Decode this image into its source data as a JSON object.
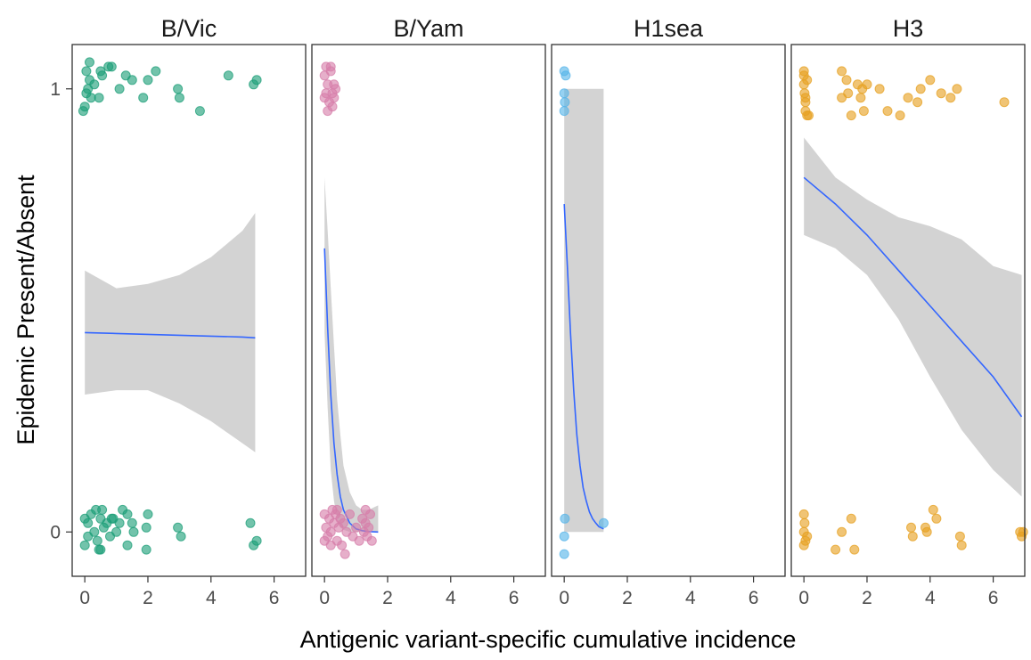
{
  "chart_data": {
    "type": "scatter",
    "xlabel": "Antigenic variant-specific cumulative incidence",
    "ylabel": "Epidemic Present/Absent",
    "xlim": [
      -0.4,
      7.0
    ],
    "ylim": [
      -0.1,
      1.1
    ],
    "x_ticks": [
      0,
      2,
      4,
      6
    ],
    "y_ticks": [
      0,
      1
    ],
    "grid": false,
    "facets": [
      {
        "title": "B/Vic",
        "color": "#1b9e77",
        "fit": {
          "x": [
            0,
            1,
            2,
            3,
            4,
            5,
            5.4
          ],
          "y": [
            0.45,
            0.448,
            0.446,
            0.444,
            0.442,
            0.44,
            0.438
          ],
          "lower": [
            0.31,
            0.32,
            0.32,
            0.29,
            0.25,
            0.2,
            0.18
          ],
          "upper": [
            0.59,
            0.55,
            0.56,
            0.58,
            0.62,
            0.68,
            0.72
          ]
        },
        "points": [
          [
            -0.05,
            0.95
          ],
          [
            0.05,
            0.99
          ],
          [
            0.1,
            1.0
          ],
          [
            0.15,
            1.02
          ],
          [
            0.05,
            1.04
          ],
          [
            0.2,
            0.98
          ],
          [
            0.3,
            1.01
          ],
          [
            0.5,
            1.04
          ],
          [
            0.45,
            0.98
          ],
          [
            0.55,
            1.03
          ],
          [
            0.75,
            1.05
          ],
          [
            0.85,
            1.05
          ],
          [
            1.1,
            1.0
          ],
          [
            1.3,
            1.03
          ],
          [
            1.5,
            1.02
          ],
          [
            1.85,
            0.98
          ],
          [
            2.0,
            1.02
          ],
          [
            2.25,
            1.04
          ],
          [
            2.95,
            1.0
          ],
          [
            3.0,
            0.98
          ],
          [
            3.65,
            0.95
          ],
          [
            4.55,
            1.03
          ],
          [
            5.35,
            1.01
          ],
          [
            5.45,
            1.02
          ],
          [
            0.0,
            0.96
          ],
          [
            0.15,
            1.06
          ],
          [
            0.0,
            0.03
          ],
          [
            0.1,
            0.02
          ],
          [
            0.2,
            0.04
          ],
          [
            0.3,
            0.0
          ],
          [
            0.4,
            -0.02
          ],
          [
            0.5,
            0.03
          ],
          [
            0.55,
            0.05
          ],
          [
            0.6,
            0.01
          ],
          [
            0.7,
            0.02
          ],
          [
            0.8,
            -0.01
          ],
          [
            0.9,
            0.03
          ],
          [
            1.0,
            0.0
          ],
          [
            1.1,
            0.02
          ],
          [
            1.2,
            0.05
          ],
          [
            1.35,
            0.04
          ],
          [
            1.5,
            0.02
          ],
          [
            1.55,
            0.0
          ],
          [
            1.95,
            0.01
          ],
          [
            2.0,
            0.04
          ],
          [
            2.95,
            0.01
          ],
          [
            3.05,
            -0.01
          ],
          [
            5.25,
            0.02
          ],
          [
            5.45,
            -0.02
          ],
          [
            5.35,
            -0.03
          ],
          [
            0.5,
            -0.04
          ],
          [
            1.35,
            -0.03
          ],
          [
            1.95,
            -0.04
          ],
          [
            0.0,
            -0.03
          ],
          [
            0.1,
            -0.01
          ],
          [
            0.35,
            0.05
          ],
          [
            0.45,
            -0.04
          ],
          [
            0.85,
            0.03
          ]
        ]
      },
      {
        "title": "B/Yam",
        "color": "#d67ea9",
        "fit": {
          "x": [
            0,
            0.1,
            0.2,
            0.3,
            0.4,
            0.5,
            0.6,
            0.8,
            1.0,
            1.2,
            1.4,
            1.7
          ],
          "y": [
            0.64,
            0.46,
            0.31,
            0.2,
            0.13,
            0.08,
            0.05,
            0.02,
            0.007,
            0.003,
            0.001,
            0.0
          ],
          "lower": [
            0.45,
            0.28,
            0.14,
            0.07,
            0.03,
            0.01,
            0.005,
            0.0,
            0.0,
            0.0,
            0.0,
            0.0
          ],
          "upper": [
            0.8,
            0.68,
            0.55,
            0.42,
            0.3,
            0.22,
            0.15,
            0.09,
            0.06,
            0.05,
            0.05,
            0.06
          ]
        },
        "points": [
          [
            0.0,
            1.03
          ],
          [
            0.05,
            0.99
          ],
          [
            0.1,
            1.01
          ],
          [
            0.15,
            0.97
          ],
          [
            0.2,
            1.04
          ],
          [
            0.25,
            0.99
          ],
          [
            0.3,
            0.98
          ],
          [
            0.35,
            1.0
          ],
          [
            0.1,
            0.95
          ],
          [
            0.0,
            0.98
          ],
          [
            0.2,
            1.05
          ],
          [
            0.3,
            1.01
          ],
          [
            0.25,
            0.96
          ],
          [
            0.05,
            1.05
          ],
          [
            0.0,
            0.04
          ],
          [
            0.05,
            0.01
          ],
          [
            0.1,
            -0.01
          ],
          [
            0.15,
            0.03
          ],
          [
            0.2,
            0.0
          ],
          [
            0.25,
            0.05
          ],
          [
            0.3,
            0.02
          ],
          [
            0.35,
            0.04
          ],
          [
            0.4,
            -0.02
          ],
          [
            0.45,
            0.01
          ],
          [
            0.5,
            0.03
          ],
          [
            0.55,
            -0.03
          ],
          [
            0.6,
            0.02
          ],
          [
            0.7,
            0.0
          ],
          [
            0.8,
            0.04
          ],
          [
            0.9,
            -0.01
          ],
          [
            1.0,
            0.01
          ],
          [
            1.1,
            -0.02
          ],
          [
            1.2,
            0.03
          ],
          [
            1.25,
            0.0
          ],
          [
            1.3,
            0.02
          ],
          [
            1.35,
            -0.01
          ],
          [
            1.4,
            0.01
          ],
          [
            1.45,
            0.04
          ],
          [
            1.5,
            -0.02
          ],
          [
            0.65,
            -0.05
          ],
          [
            0.0,
            -0.02
          ],
          [
            0.4,
            0.05
          ],
          [
            1.3,
            0.05
          ],
          [
            0.2,
            -0.03
          ]
        ]
      },
      {
        "title": "H1sea",
        "color": "#56b4e9",
        "fit": {
          "x": [
            0,
            0.1,
            0.2,
            0.3,
            0.4,
            0.5,
            0.6,
            0.7,
            0.8,
            0.9,
            1.0,
            1.1,
            1.25
          ],
          "y": [
            0.74,
            0.6,
            0.45,
            0.32,
            0.22,
            0.15,
            0.1,
            0.07,
            0.045,
            0.03,
            0.02,
            0.012,
            0.007
          ],
          "lower": [
            0.0,
            0.0,
            0.0,
            0.0,
            0.0,
            0.0,
            0.0,
            0.0,
            0.0,
            0.0,
            0.0,
            0.0,
            0.0
          ],
          "upper": [
            1.0,
            1.0,
            1.0,
            1.0,
            1.0,
            1.0,
            1.0,
            1.0,
            1.0,
            1.0,
            1.0,
            1.0,
            1.0
          ]
        },
        "points": [
          [
            0.0,
            1.04
          ],
          [
            0.05,
            1.03
          ],
          [
            0.0,
            0.99
          ],
          [
            0.02,
            0.97
          ],
          [
            0.0,
            0.95
          ],
          [
            0.02,
            0.03
          ],
          [
            0.0,
            -0.01
          ],
          [
            0.0,
            -0.05
          ],
          [
            1.25,
            0.02
          ]
        ]
      },
      {
        "title": "H3",
        "color": "#e6a020",
        "fit": {
          "x": [
            0,
            1,
            2,
            3,
            4,
            5,
            6,
            6.9
          ],
          "y": [
            0.8,
            0.74,
            0.67,
            0.59,
            0.51,
            0.43,
            0.35,
            0.26
          ],
          "lower": [
            0.67,
            0.64,
            0.58,
            0.48,
            0.35,
            0.23,
            0.14,
            0.08
          ],
          "upper": [
            0.89,
            0.8,
            0.75,
            0.71,
            0.69,
            0.66,
            0.6,
            0.58
          ]
        },
        "points": [
          [
            0.0,
            1.03
          ],
          [
            0.0,
            1.01
          ],
          [
            0.02,
            0.99
          ],
          [
            0.05,
            0.97
          ],
          [
            0.1,
            1.02
          ],
          [
            0.05,
            0.95
          ],
          [
            0.1,
            0.94
          ],
          [
            0.0,
            1.04
          ],
          [
            0.05,
            0.98
          ],
          [
            0.15,
            0.94
          ],
          [
            1.2,
            1.04
          ],
          [
            1.35,
            1.02
          ],
          [
            1.2,
            0.98
          ],
          [
            1.4,
            0.99
          ],
          [
            1.5,
            0.94
          ],
          [
            1.7,
            1.01
          ],
          [
            1.8,
            0.98
          ],
          [
            1.85,
            1.0
          ],
          [
            1.9,
            0.95
          ],
          [
            2.0,
            1.01
          ],
          [
            2.4,
            1.0
          ],
          [
            2.65,
            0.95
          ],
          [
            3.05,
            0.94
          ],
          [
            3.3,
            0.98
          ],
          [
            3.6,
            0.97
          ],
          [
            3.7,
            1.0
          ],
          [
            4.0,
            1.02
          ],
          [
            4.35,
            0.99
          ],
          [
            4.65,
            0.98
          ],
          [
            4.85,
            1.0
          ],
          [
            6.35,
            0.97
          ],
          [
            0.0,
            0.04
          ],
          [
            0.02,
            0.02
          ],
          [
            0.0,
            0.0
          ],
          [
            0.05,
            -0.02
          ],
          [
            0.0,
            -0.03
          ],
          [
            0.1,
            -0.01
          ],
          [
            1.0,
            -0.04
          ],
          [
            1.2,
            0.0
          ],
          [
            1.5,
            0.03
          ],
          [
            1.6,
            -0.04
          ],
          [
            3.4,
            0.01
          ],
          [
            3.45,
            -0.01
          ],
          [
            3.85,
            0.01
          ],
          [
            3.9,
            0.0
          ],
          [
            4.1,
            0.05
          ],
          [
            4.2,
            0.03
          ],
          [
            4.95,
            -0.01
          ],
          [
            5.0,
            -0.03
          ],
          [
            6.85,
            0.0
          ],
          [
            6.9,
            -0.01
          ],
          [
            6.95,
            0.0
          ]
        ]
      }
    ]
  }
}
